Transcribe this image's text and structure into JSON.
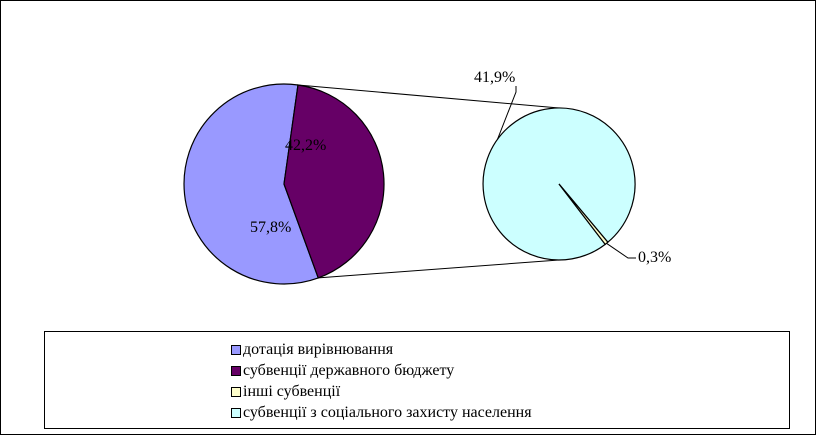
{
  "chart_data": {
    "type": "pie",
    "subtype": "pie-of-pie",
    "main_pie": {
      "slices": [
        {
          "name": "дотація вирівнювання",
          "value": 57.8,
          "label": "57,8%",
          "color": "#9999FF"
        },
        {
          "name": "субвенції",
          "value": 42.2,
          "label": "42,2%",
          "color": "#660066"
        }
      ]
    },
    "secondary_pie": {
      "slices": [
        {
          "name": "субвенції з соціального захисту населення",
          "value": 41.9,
          "label": "41,9%",
          "color": "#CCFFFF"
        },
        {
          "name": "інші субвенції",
          "value": 0.3,
          "label": "0,3%",
          "color": "#FFFFCC"
        }
      ]
    },
    "legend": {
      "position": "bottom",
      "entries": [
        {
          "label": "дотація вирівнювання",
          "color": "#9999FF"
        },
        {
          "label": "субвенції державного бюджету",
          "color": "#660066"
        },
        {
          "label": "інші субвенції",
          "color": "#FFFFCC"
        },
        {
          "label": "субвенції з соціального захисту населення",
          "color": "#CCFFFF"
        }
      ]
    }
  }
}
